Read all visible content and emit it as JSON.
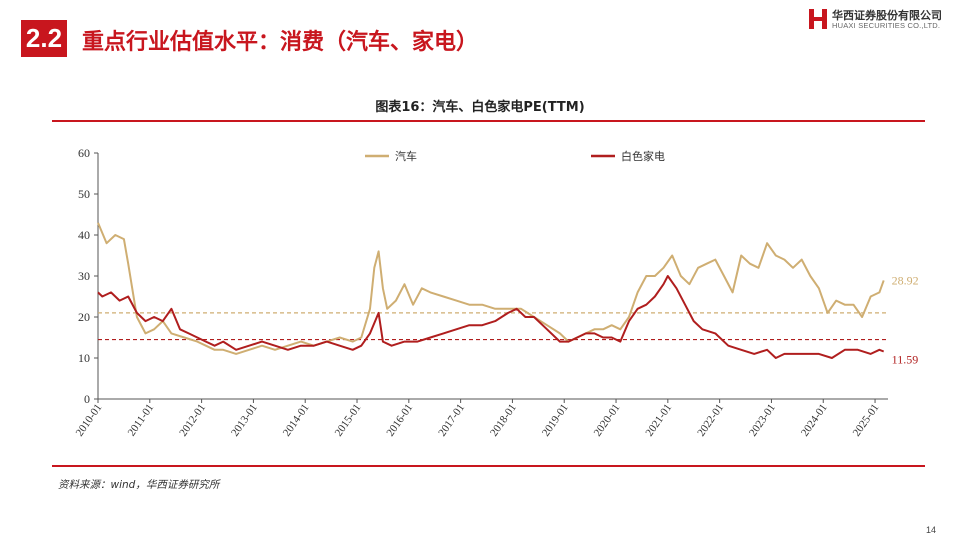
{
  "header": {
    "section_number": "2.2",
    "title": "重点行业估值水平：消费（汽车、家电）",
    "logo_cn": "华西证券股份有限公司",
    "logo_en": "HUAXI SECURITIES CO.,LTD."
  },
  "colors": {
    "brand_red": "#c8161e",
    "auto": "#cfae72",
    "appliance": "#b01e1e"
  },
  "chart_data": {
    "type": "line",
    "title": "图表16：汽车、白色家电PE(TTM)",
    "xlabel": "",
    "ylabel": "",
    "ylim": [
      0,
      60
    ],
    "yticks": [
      "0",
      "10",
      "20",
      "30",
      "40",
      "50",
      "60"
    ],
    "xticks": [
      "2010-01",
      "2011-01",
      "2012-01",
      "2013-01",
      "2014-01",
      "2015-01",
      "2016-01",
      "2017-01",
      "2018-01",
      "2019-01",
      "2020-01",
      "2021-01",
      "2022-01",
      "2023-01",
      "2024-01",
      "2025-01"
    ],
    "grid": false,
    "legend_position": "top",
    "series": [
      {
        "name": "汽车",
        "color": "#cfae72",
        "end_label": "28.92",
        "mean_line": 21,
        "points": [
          [
            "2010-01",
            43
          ],
          [
            "2010-03",
            38
          ],
          [
            "2010-05",
            40
          ],
          [
            "2010-07",
            39
          ],
          [
            "2010-08",
            33
          ],
          [
            "2010-10",
            20
          ],
          [
            "2010-12",
            16
          ],
          [
            "2011-02",
            17
          ],
          [
            "2011-04",
            19
          ],
          [
            "2011-06",
            16
          ],
          [
            "2011-09",
            15
          ],
          [
            "2011-12",
            14
          ],
          [
            "2012-02",
            13
          ],
          [
            "2012-04",
            12
          ],
          [
            "2012-06",
            12
          ],
          [
            "2012-09",
            11
          ],
          [
            "2012-12",
            12
          ],
          [
            "2013-03",
            13
          ],
          [
            "2013-06",
            12
          ],
          [
            "2013-09",
            13
          ],
          [
            "2013-12",
            14
          ],
          [
            "2014-03",
            13
          ],
          [
            "2014-06",
            14
          ],
          [
            "2014-09",
            15
          ],
          [
            "2014-12",
            14
          ],
          [
            "2015-02",
            15
          ],
          [
            "2015-04",
            22
          ],
          [
            "2015-05",
            32
          ],
          [
            "2015-06",
            36
          ],
          [
            "2015-07",
            27
          ],
          [
            "2015-08",
            22
          ],
          [
            "2015-10",
            24
          ],
          [
            "2015-12",
            28
          ],
          [
            "2016-02",
            23
          ],
          [
            "2016-04",
            27
          ],
          [
            "2016-06",
            26
          ],
          [
            "2016-09",
            25
          ],
          [
            "2016-12",
            24
          ],
          [
            "2017-03",
            23
          ],
          [
            "2017-06",
            23
          ],
          [
            "2017-09",
            22
          ],
          [
            "2017-12",
            22
          ],
          [
            "2018-03",
            22
          ],
          [
            "2018-06",
            20
          ],
          [
            "2018-09",
            18
          ],
          [
            "2018-12",
            16
          ],
          [
            "2019-02",
            14
          ],
          [
            "2019-04",
            15
          ],
          [
            "2019-06",
            16
          ],
          [
            "2019-08",
            17
          ],
          [
            "2019-10",
            17
          ],
          [
            "2019-12",
            18
          ],
          [
            "2020-02",
            17
          ],
          [
            "2020-04",
            20
          ],
          [
            "2020-06",
            26
          ],
          [
            "2020-08",
            30
          ],
          [
            "2020-10",
            30
          ],
          [
            "2020-12",
            32
          ],
          [
            "2021-02",
            35
          ],
          [
            "2021-04",
            30
          ],
          [
            "2021-06",
            28
          ],
          [
            "2021-08",
            32
          ],
          [
            "2021-10",
            33
          ],
          [
            "2021-12",
            34
          ],
          [
            "2022-02",
            30
          ],
          [
            "2022-04",
            26
          ],
          [
            "2022-06",
            35
          ],
          [
            "2022-08",
            33
          ],
          [
            "2022-10",
            32
          ],
          [
            "2022-12",
            38
          ],
          [
            "2023-02",
            35
          ],
          [
            "2023-04",
            34
          ],
          [
            "2023-06",
            32
          ],
          [
            "2023-08",
            34
          ],
          [
            "2023-10",
            30
          ],
          [
            "2023-12",
            27
          ],
          [
            "2024-02",
            21
          ],
          [
            "2024-04",
            24
          ],
          [
            "2024-06",
            23
          ],
          [
            "2024-08",
            23
          ],
          [
            "2024-10",
            20
          ],
          [
            "2024-12",
            25
          ],
          [
            "2025-02",
            26
          ],
          [
            "2025-03",
            28.92
          ]
        ]
      },
      {
        "name": "白色家电",
        "color": "#b01e1e",
        "end_label": "11.59",
        "mean_line": 14.5,
        "points": [
          [
            "2010-01",
            26
          ],
          [
            "2010-02",
            25
          ],
          [
            "2010-04",
            26
          ],
          [
            "2010-06",
            24
          ],
          [
            "2010-08",
            25
          ],
          [
            "2010-10",
            21
          ],
          [
            "2010-12",
            19
          ],
          [
            "2011-02",
            20
          ],
          [
            "2011-04",
            19
          ],
          [
            "2011-06",
            22
          ],
          [
            "2011-08",
            17
          ],
          [
            "2011-10",
            16
          ],
          [
            "2011-12",
            15
          ],
          [
            "2012-02",
            14
          ],
          [
            "2012-04",
            13
          ],
          [
            "2012-06",
            14
          ],
          [
            "2012-09",
            12
          ],
          [
            "2012-12",
            13
          ],
          [
            "2013-03",
            14
          ],
          [
            "2013-06",
            13
          ],
          [
            "2013-09",
            12
          ],
          [
            "2013-12",
            13
          ],
          [
            "2014-03",
            13
          ],
          [
            "2014-06",
            14
          ],
          [
            "2014-09",
            13
          ],
          [
            "2014-12",
            12
          ],
          [
            "2015-02",
            13
          ],
          [
            "2015-04",
            16
          ],
          [
            "2015-06",
            21
          ],
          [
            "2015-07",
            14
          ],
          [
            "2015-09",
            13
          ],
          [
            "2015-12",
            14
          ],
          [
            "2016-03",
            14
          ],
          [
            "2016-06",
            15
          ],
          [
            "2016-09",
            16
          ],
          [
            "2016-12",
            17
          ],
          [
            "2017-03",
            18
          ],
          [
            "2017-06",
            18
          ],
          [
            "2017-09",
            19
          ],
          [
            "2017-12",
            21
          ],
          [
            "2018-02",
            22
          ],
          [
            "2018-04",
            20
          ],
          [
            "2018-06",
            20
          ],
          [
            "2018-09",
            17
          ],
          [
            "2018-12",
            14
          ],
          [
            "2019-02",
            14
          ],
          [
            "2019-04",
            15
          ],
          [
            "2019-06",
            16
          ],
          [
            "2019-08",
            16
          ],
          [
            "2019-10",
            15
          ],
          [
            "2019-12",
            15
          ],
          [
            "2020-02",
            14
          ],
          [
            "2020-04",
            19
          ],
          [
            "2020-06",
            22
          ],
          [
            "2020-08",
            23
          ],
          [
            "2020-10",
            25
          ],
          [
            "2020-12",
            28
          ],
          [
            "2021-01",
            30
          ],
          [
            "2021-03",
            27
          ],
          [
            "2021-05",
            23
          ],
          [
            "2021-07",
            19
          ],
          [
            "2021-09",
            17
          ],
          [
            "2021-12",
            16
          ],
          [
            "2022-03",
            13
          ],
          [
            "2022-06",
            12
          ],
          [
            "2022-09",
            11
          ],
          [
            "2022-12",
            12
          ],
          [
            "2023-02",
            10
          ],
          [
            "2023-04",
            11
          ],
          [
            "2023-06",
            11
          ],
          [
            "2023-09",
            11
          ],
          [
            "2023-12",
            11
          ],
          [
            "2024-03",
            10
          ],
          [
            "2024-06",
            12
          ],
          [
            "2024-09",
            12
          ],
          [
            "2024-12",
            11
          ],
          [
            "2025-02",
            12
          ],
          [
            "2025-03",
            11.59
          ]
        ]
      }
    ]
  },
  "footer": {
    "source": "资料来源：wind，华西证券研究所",
    "page": "14"
  }
}
